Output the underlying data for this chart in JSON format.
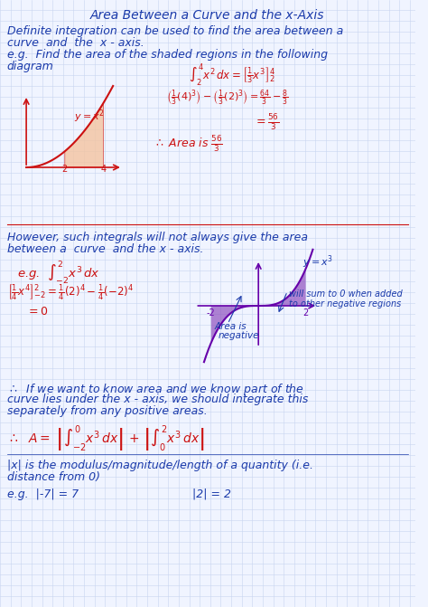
{
  "title": "Area Between a Curve and the x-Axis",
  "bg_color": "#f0f4ff",
  "grid_color": "#c8d4f0",
  "blue_color": "#1a3aaa",
  "red_color": "#cc1111",
  "purple_color": "#6600aa",
  "line1": "Definite integration can be used to find the area between a",
  "line2": "curve  and  the  x - axis.",
  "eg1_line1": "e.g.  Find the area of the shaded regions in the following",
  "eg1_line2": "diagram",
  "line3": "However, such integrals will not always give the area",
  "line4": "between a  curve  and the x - axis.",
  "note1": "will sum to 0 when added",
  "note2": "to other negative regions",
  "note3": "Area is",
  "note4": "negative",
  "line5": "curve lies under the x - axis, we should integrate this",
  "line6": "separately from any positive areas.",
  "line8": "|x| is the modulus/magnitude/length of a quantity (i.e.",
  "line9": "distance from 0)",
  "eg3a": "e.g.  |-7| = 7",
  "eg3b": "|2| = 2"
}
